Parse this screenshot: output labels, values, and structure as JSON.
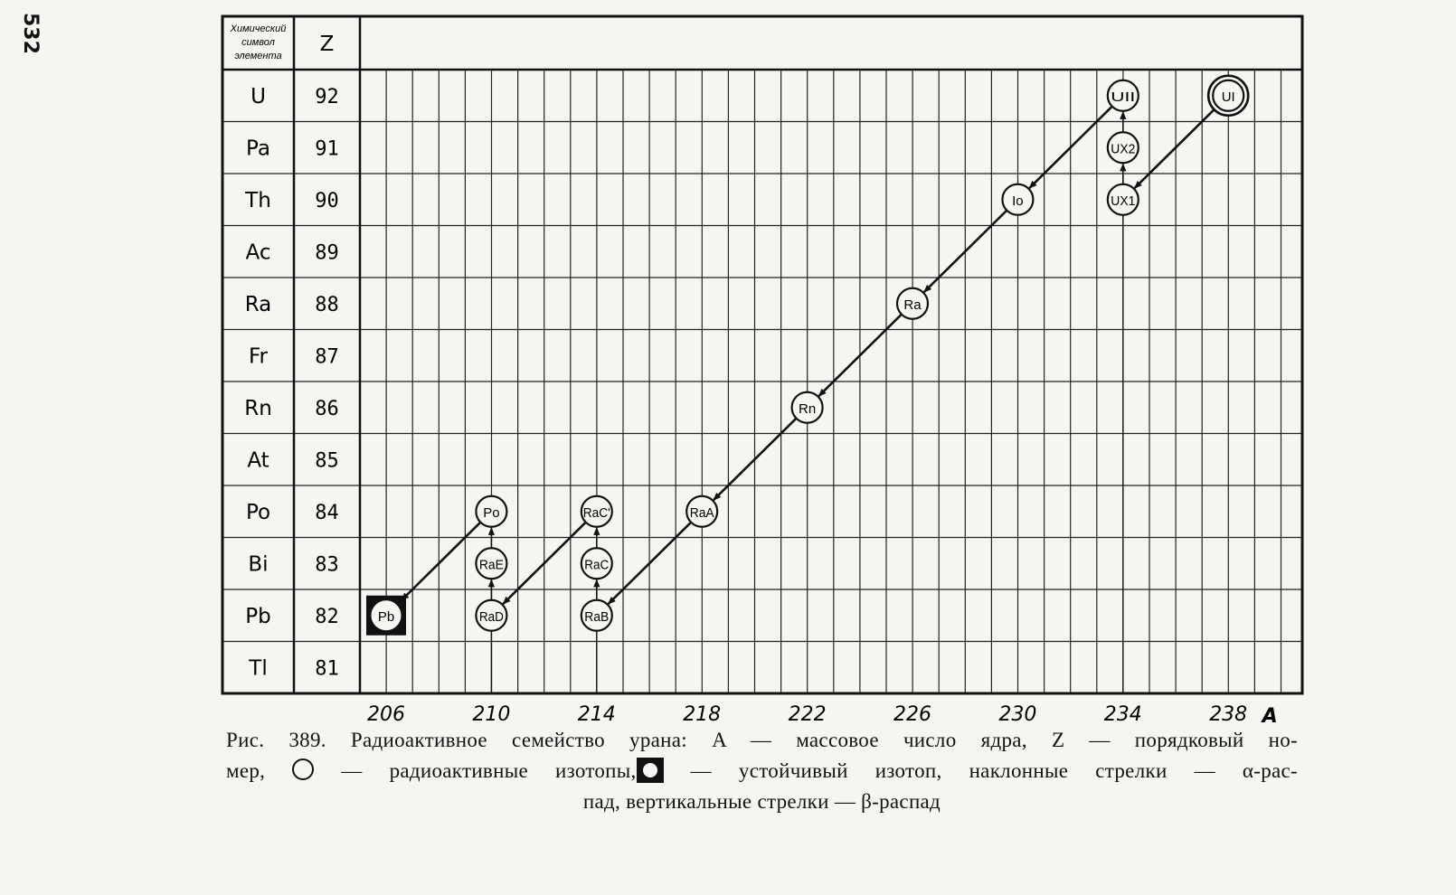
{
  "page_number": "532",
  "table_header": {
    "element_symbol": "Химический символ элемента",
    "z": "Z"
  },
  "rows": [
    {
      "symbol": "U",
      "z": "92"
    },
    {
      "symbol": "Pa",
      "z": "91"
    },
    {
      "symbol": "Th",
      "z": "90"
    },
    {
      "symbol": "Ac",
      "z": "89"
    },
    {
      "symbol": "Ra",
      "z": "88"
    },
    {
      "symbol": "Fr",
      "z": "87"
    },
    {
      "symbol": "Rn",
      "z": "86"
    },
    {
      "symbol": "At",
      "z": "85"
    },
    {
      "symbol": "Po",
      "z": "84"
    },
    {
      "symbol": "Bi",
      "z": "83"
    },
    {
      "symbol": "Pb",
      "z": "82"
    },
    {
      "symbol": "Tl",
      "z": "81"
    }
  ],
  "a_axis": {
    "ticks": [
      "206",
      "210",
      "214",
      "218",
      "222",
      "226",
      "230",
      "234",
      "238"
    ],
    "label": "A"
  },
  "isotopes": [
    {
      "label": "UI",
      "a": 238,
      "z": 92,
      "kind": "double"
    },
    {
      "label": "UII",
      "a": 234,
      "z": 92,
      "kind": "radioactive"
    },
    {
      "label": "UX2",
      "a": 234,
      "z": 91,
      "kind": "radioactive"
    },
    {
      "label": "UX1",
      "a": 234,
      "z": 90,
      "kind": "radioactive"
    },
    {
      "label": "Io",
      "a": 230,
      "z": 90,
      "kind": "radioactive"
    },
    {
      "label": "Ra",
      "a": 226,
      "z": 88,
      "kind": "radioactive"
    },
    {
      "label": "Rn",
      "a": 222,
      "z": 86,
      "kind": "radioactive"
    },
    {
      "label": "RaA",
      "a": 218,
      "z": 84,
      "kind": "radioactive"
    },
    {
      "label": "RaC'",
      "a": 214,
      "z": 84,
      "kind": "radioactive"
    },
    {
      "label": "RaC",
      "a": 214,
      "z": 83,
      "kind": "radioactive"
    },
    {
      "label": "RaB",
      "a": 214,
      "z": 82,
      "kind": "radioactive"
    },
    {
      "label": "Po",
      "a": 210,
      "z": 84,
      "kind": "radioactive"
    },
    {
      "label": "RaE",
      "a": 210,
      "z": 83,
      "kind": "radioactive"
    },
    {
      "label": "RaD",
      "a": 210,
      "z": 82,
      "kind": "radioactive"
    },
    {
      "label": "Pb",
      "a": 206,
      "z": 82,
      "kind": "stable"
    }
  ],
  "decays": [
    {
      "from": "UI",
      "to": "UX1",
      "type": "alpha"
    },
    {
      "from": "UX1",
      "to": "UX2",
      "type": "beta"
    },
    {
      "from": "UX2",
      "to": "UII",
      "type": "beta"
    },
    {
      "from": "UII",
      "to": "Io",
      "type": "alpha"
    },
    {
      "from": "Io",
      "to": "Ra",
      "type": "alpha"
    },
    {
      "from": "Ra",
      "to": "Rn",
      "type": "alpha"
    },
    {
      "from": "Rn",
      "to": "RaA",
      "type": "alpha"
    },
    {
      "from": "RaA",
      "to": "RaB",
      "type": "alpha"
    },
    {
      "from": "RaB",
      "to": "RaC",
      "type": "beta"
    },
    {
      "from": "RaC",
      "to": "RaC'",
      "type": "beta"
    },
    {
      "from": "RaC'",
      "to": "RaD",
      "type": "alpha"
    },
    {
      "from": "RaD",
      "to": "RaE",
      "type": "beta"
    },
    {
      "from": "RaE",
      "to": "Po",
      "type": "beta"
    },
    {
      "from": "Po",
      "to": "Pb",
      "type": "alpha"
    }
  ],
  "caption": {
    "line1": "Рис. 389. Радиоактивное семейство урана: A — массовое число ядра, Z — порядковый но-",
    "line2_start": "мер,",
    "line2_mid": "— радиоактивные изотопы,",
    "line2_end": "— устойчивый изотоп, наклонные стрелки — α-рас-",
    "line3": "пад, вертикальные стрелки — β-распад"
  }
}
